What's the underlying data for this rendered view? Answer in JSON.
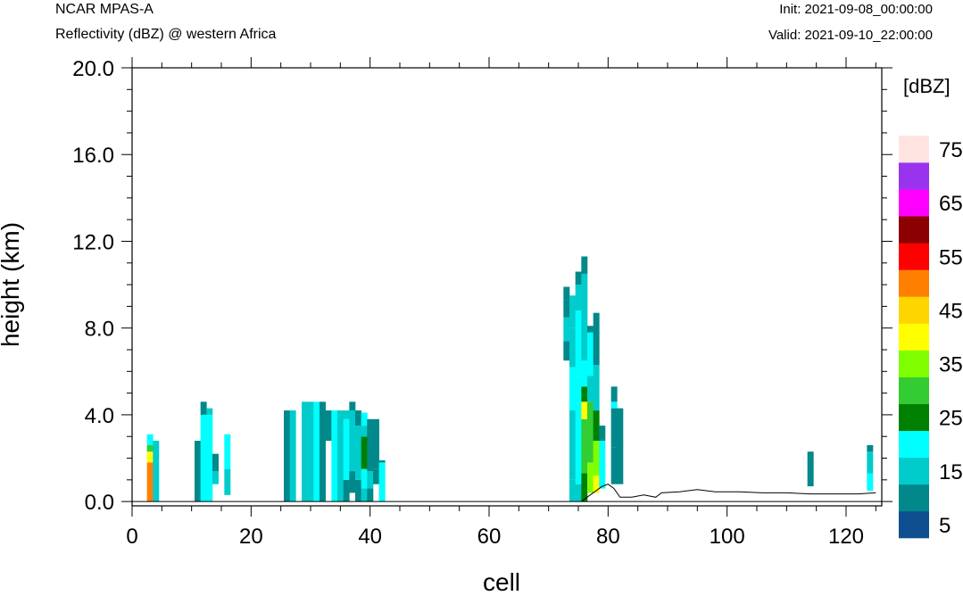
{
  "header": {
    "left_title": "NCAR MPAS-A",
    "left_subtitle": "Reflectivity (dBZ) @ western Africa",
    "right_init": "Init: 2021-09-08_00:00:00",
    "right_valid": "Valid: 2021-09-10_22:00:00"
  },
  "colorbar": {
    "unit": "[dBZ]",
    "labels": [
      "5",
      "15",
      "25",
      "35",
      "45",
      "55",
      "65",
      "75"
    ],
    "colors": [
      "#0f4f8f",
      "#00888a",
      "#00cccc",
      "#00ffff",
      "#008000",
      "#33cc33",
      "#80ff00",
      "#ffff00",
      "#ffd500",
      "#ff8000",
      "#ff0000",
      "#8b0000",
      "#ff00ff",
      "#9933ee",
      "#ffe4e1"
    ]
  },
  "chart_data": {
    "type": "heatmap",
    "title": "Reflectivity (dBZ) @ western Africa",
    "xlabel": "cell",
    "ylabel": "height (km)",
    "xlim": [
      0,
      126
    ],
    "ylim": [
      -0.2,
      20.0
    ],
    "xticks": [
      0,
      20,
      40,
      60,
      80,
      100,
      120
    ],
    "xtick_labels": [
      "0",
      "20",
      "40",
      "60",
      "80",
      "100",
      "120"
    ],
    "yticks": [
      0,
      4,
      8,
      12,
      16,
      20
    ],
    "ytick_labels": [
      "0.0",
      "4.0",
      "8.0",
      "12.0",
      "16.0",
      "20.0"
    ],
    "terrain": [
      [
        75.5,
        0.0
      ],
      [
        77,
        0.3
      ],
      [
        79,
        0.7
      ],
      [
        80,
        0.8
      ],
      [
        81,
        0.6
      ],
      [
        82,
        0.2
      ],
      [
        84,
        0.2
      ],
      [
        86,
        0.3
      ],
      [
        88,
        0.2
      ],
      [
        89,
        0.4
      ],
      [
        92,
        0.45
      ],
      [
        95,
        0.55
      ],
      [
        98,
        0.45
      ],
      [
        102,
        0.45
      ],
      [
        106,
        0.4
      ],
      [
        110,
        0.4
      ],
      [
        114,
        0.35
      ],
      [
        118,
        0.35
      ],
      [
        122,
        0.35
      ],
      [
        125,
        0.4
      ]
    ],
    "columns": [
      {
        "x": 3,
        "segs": [
          [
            0,
            1.8,
            45
          ],
          [
            1.8,
            2.3,
            35
          ],
          [
            2.3,
            2.6,
            25
          ],
          [
            2.6,
            2.8,
            15
          ],
          [
            2.8,
            3.1,
            15
          ]
        ]
      },
      {
        "x": 4,
        "segs": [
          [
            0,
            2.8,
            10
          ]
        ]
      },
      {
        "x": 11,
        "segs": [
          [
            0,
            2.8,
            5
          ]
        ]
      },
      {
        "x": 12,
        "segs": [
          [
            0,
            4.0,
            15
          ],
          [
            4.0,
            4.6,
            5
          ]
        ]
      },
      {
        "x": 13,
        "segs": [
          [
            0,
            4.0,
            15
          ],
          [
            4.0,
            4.3,
            10
          ]
        ]
      },
      {
        "x": 14,
        "segs": [
          [
            0.8,
            1.4,
            10
          ],
          [
            1.4,
            2.2,
            5
          ]
        ]
      },
      {
        "x": 16,
        "segs": [
          [
            0.3,
            1.5,
            10
          ],
          [
            1.5,
            2.7,
            15
          ],
          [
            2.7,
            3.1,
            15
          ]
        ]
      },
      {
        "x": 26,
        "segs": [
          [
            0,
            4.2,
            5
          ]
        ]
      },
      {
        "x": 27,
        "segs": [
          [
            0,
            4.2,
            10
          ]
        ]
      },
      {
        "x": 29,
        "segs": [
          [
            0,
            4.6,
            10
          ]
        ]
      },
      {
        "x": 30,
        "segs": [
          [
            0,
            4.6,
            10
          ]
        ]
      },
      {
        "x": 31,
        "segs": [
          [
            0,
            4.6,
            15
          ]
        ]
      },
      {
        "x": 32,
        "segs": [
          [
            0,
            4.6,
            5
          ]
        ]
      },
      {
        "x": 33,
        "segs": [
          [
            2.8,
            4.2,
            5
          ]
        ]
      },
      {
        "x": 34,
        "segs": [
          [
            0,
            4.2,
            15
          ]
        ]
      },
      {
        "x": 35,
        "segs": [
          [
            0,
            4.2,
            10
          ]
        ]
      },
      {
        "x": 36,
        "segs": [
          [
            0,
            1.0,
            5
          ],
          [
            1.0,
            3.8,
            15
          ],
          [
            3.8,
            4.2,
            10
          ]
        ]
      },
      {
        "x": 37,
        "segs": [
          [
            0.4,
            1.4,
            5
          ],
          [
            1.4,
            3.5,
            10
          ],
          [
            3.5,
            4.2,
            10
          ],
          [
            4.2,
            4.6,
            5
          ]
        ]
      },
      {
        "x": 38,
        "segs": [
          [
            0,
            1.0,
            5
          ],
          [
            1.0,
            3.5,
            10
          ],
          [
            3.5,
            4.2,
            5
          ]
        ]
      },
      {
        "x": 39,
        "segs": [
          [
            0,
            0.6,
            10
          ],
          [
            0.6,
            1.5,
            15
          ],
          [
            1.5,
            3.0,
            20
          ],
          [
            3.0,
            3.5,
            10
          ],
          [
            3.5,
            4.1,
            15
          ]
        ]
      },
      {
        "x": 40,
        "segs": [
          [
            0,
            0.6,
            5
          ],
          [
            0.6,
            1.4,
            10
          ],
          [
            1.4,
            3.8,
            5
          ]
        ]
      },
      {
        "x": 41,
        "segs": [
          [
            0.8,
            1.5,
            5
          ],
          [
            1.5,
            3.8,
            5
          ]
        ]
      },
      {
        "x": 42,
        "segs": [
          [
            0,
            1.8,
            15
          ],
          [
            1.8,
            1.9,
            5
          ]
        ]
      },
      {
        "x": 73,
        "segs": [
          [
            6.5,
            7.4,
            5
          ],
          [
            7.4,
            8.5,
            10
          ],
          [
            8.5,
            9.3,
            5
          ],
          [
            9.3,
            9.9,
            5
          ]
        ]
      },
      {
        "x": 74,
        "segs": [
          [
            0,
            1.0,
            10
          ],
          [
            1.0,
            4.2,
            10
          ],
          [
            4.2,
            6.2,
            15
          ],
          [
            6.2,
            8.0,
            10
          ],
          [
            8.0,
            9.5,
            10
          ]
        ]
      },
      {
        "x": 75,
        "segs": [
          [
            0,
            0.8,
            10
          ],
          [
            0.8,
            5.8,
            15
          ],
          [
            5.8,
            8.8,
            15
          ],
          [
            8.8,
            10.0,
            10
          ],
          [
            10.0,
            10.6,
            5
          ]
        ]
      },
      {
        "x": 76,
        "segs": [
          [
            0,
            1.3,
            20
          ],
          [
            1.3,
            3.8,
            25
          ],
          [
            3.8,
            4.6,
            35
          ],
          [
            4.6,
            5.3,
            20
          ],
          [
            5.3,
            6.5,
            15
          ],
          [
            6.5,
            10.5,
            10
          ],
          [
            10.5,
            11.3,
            5
          ]
        ]
      },
      {
        "x": 77,
        "segs": [
          [
            0.4,
            1.8,
            30
          ],
          [
            1.8,
            4.6,
            25
          ],
          [
            4.6,
            5.8,
            10
          ],
          [
            5.8,
            7.8,
            15
          ],
          [
            7.8,
            8.1,
            5
          ]
        ]
      },
      {
        "x": 78,
        "segs": [
          [
            0.4,
            1.2,
            35
          ],
          [
            1.2,
            2.8,
            30
          ],
          [
            2.8,
            4.2,
            20
          ],
          [
            4.2,
            6.3,
            10
          ],
          [
            6.3,
            8.7,
            5
          ]
        ]
      },
      {
        "x": 79,
        "segs": [
          [
            0.6,
            2.8,
            15
          ],
          [
            2.8,
            3.5,
            5
          ]
        ]
      },
      {
        "x": 81,
        "segs": [
          [
            0.8,
            2.5,
            5
          ],
          [
            2.5,
            4.3,
            5
          ],
          [
            4.3,
            4.6,
            15
          ],
          [
            4.6,
            5.3,
            5
          ]
        ]
      },
      {
        "x": 82,
        "segs": [
          [
            0.8,
            4.3,
            5
          ]
        ]
      },
      {
        "x": 114,
        "segs": [
          [
            0.7,
            2.3,
            5
          ]
        ]
      },
      {
        "x": 124,
        "segs": [
          [
            0.5,
            1.3,
            15
          ],
          [
            1.3,
            2.3,
            10
          ],
          [
            2.3,
            2.6,
            5
          ]
        ]
      }
    ]
  }
}
